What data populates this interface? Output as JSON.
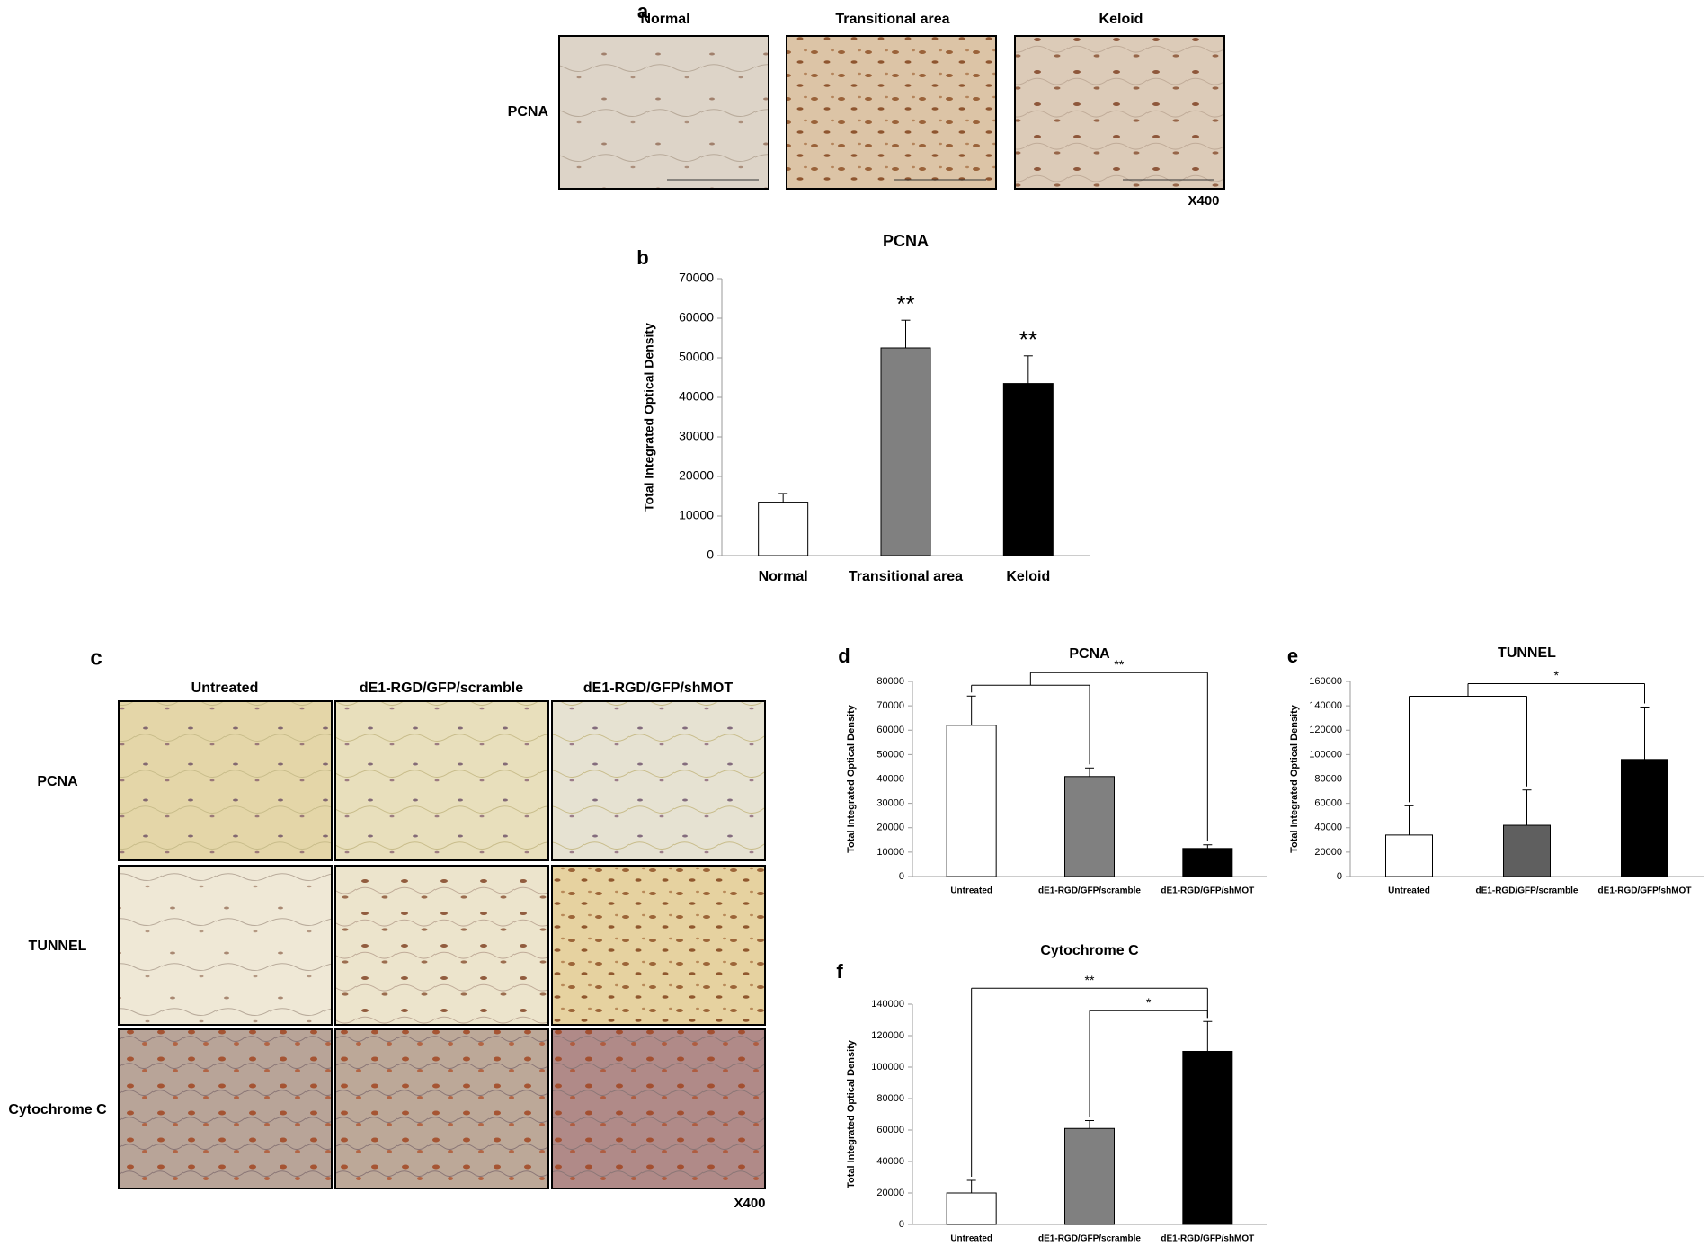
{
  "figure": {
    "panel_a": {
      "label": "a",
      "columns": [
        "Normal",
        "Transitional area",
        "Keloid"
      ],
      "rows": [
        "PCNA"
      ],
      "magnification": "X400"
    },
    "panel_c": {
      "label": "c",
      "columns": [
        "Untreated",
        "dE1-RGD/GFP/scramble",
        "dE1-RGD/GFP/shMOT"
      ],
      "rows": [
        "PCNA",
        "TUNNEL",
        "Cytochrome C"
      ],
      "magnification": "X400"
    }
  },
  "chart_data": [
    {
      "type": "bar",
      "panel_label": "b",
      "title": "PCNA",
      "y_label": "Total Integrated Optical Density",
      "categories": [
        "Normal",
        "Transitional area",
        "Keloid"
      ],
      "values": [
        13500,
        52500,
        43500
      ],
      "errors": [
        2200,
        7000,
        7000
      ],
      "colors": [
        "#ffffff",
        "#808080",
        "#000000"
      ],
      "ylim": [
        0,
        70000
      ],
      "yticks": [
        0,
        10000,
        20000,
        30000,
        40000,
        50000,
        60000,
        70000
      ],
      "annotations": [
        {
          "text": "**",
          "category": "Transitional area"
        },
        {
          "text": "**",
          "category": "Keloid"
        }
      ]
    },
    {
      "type": "bar",
      "panel_label": "d",
      "title": "PCNA",
      "y_label": "Total Integrated Optical Density",
      "categories": [
        "Untreated",
        "dE1-RGD/GFP/scramble",
        "dE1-RGD/GFP/shMOT"
      ],
      "values": [
        62000,
        41000,
        11500
      ],
      "errors": [
        12000,
        3500,
        1500
      ],
      "colors": [
        "#ffffff",
        "#808080",
        "#000000"
      ],
      "ylim": [
        0,
        80000
      ],
      "yticks": [
        0,
        10000,
        20000,
        30000,
        40000,
        50000,
        60000,
        70000,
        80000
      ],
      "annotations": [
        {
          "text": "**",
          "from": [
            "Untreated",
            "dE1-RGD/GFP/scramble"
          ],
          "to": "dE1-RGD/GFP/shMOT"
        }
      ]
    },
    {
      "type": "bar",
      "panel_label": "e",
      "title": "TUNNEL",
      "y_label": "Total Integrated Optical Density",
      "categories": [
        "Untreated",
        "dE1-RGD/GFP/scramble",
        "dE1-RGD/GFP/shMOT"
      ],
      "values": [
        34000,
        42000,
        96000
      ],
      "errors": [
        24000,
        29000,
        43000
      ],
      "colors": [
        "#ffffff",
        "#5f5f5f",
        "#000000"
      ],
      "ylim": [
        0,
        160000
      ],
      "yticks": [
        0,
        20000,
        40000,
        60000,
        80000,
        100000,
        120000,
        140000,
        160000
      ],
      "annotations": [
        {
          "text": "*",
          "from": [
            "Untreated",
            "dE1-RGD/GFP/scramble"
          ],
          "to": "dE1-RGD/GFP/shMOT"
        }
      ]
    },
    {
      "type": "bar",
      "panel_label": "f",
      "title": "Cytochrome C",
      "y_label": "Total Integrated Optical Density",
      "categories": [
        "Untreated",
        "dE1-RGD/GFP/scramble",
        "dE1-RGD/GFP/shMOT"
      ],
      "values": [
        20000,
        61000,
        110000
      ],
      "errors": [
        8000,
        5000,
        19000
      ],
      "colors": [
        "#ffffff",
        "#808080",
        "#000000"
      ],
      "ylim": [
        0,
        140000
      ],
      "yticks": [
        0,
        20000,
        40000,
        60000,
        80000,
        100000,
        120000,
        140000
      ],
      "annotations": [
        {
          "text": "*",
          "from": [
            "dE1-RGD/GFP/scramble"
          ],
          "to": "dE1-RGD/GFP/shMOT"
        },
        {
          "text": "**",
          "from": [
            "Untreated"
          ],
          "to": "dE1-RGD/GFP/shMOT"
        }
      ]
    }
  ]
}
